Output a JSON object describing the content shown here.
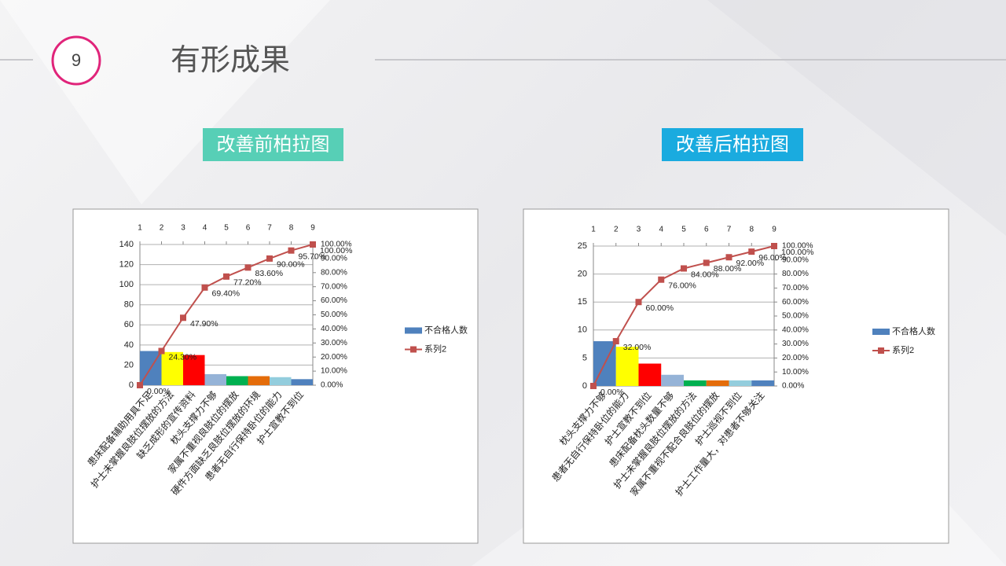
{
  "slide": {
    "number": "9",
    "title": "有形成果"
  },
  "chart_data": [
    {
      "type": "pareto",
      "title": "改善前柏拉图",
      "title_background": "#57cfb6",
      "categories": [
        "患床配备辅助用具不足",
        "护士未掌握良肢位摆放的方法",
        "缺乏成形的宣传资料",
        "枕头支撑力不够",
        "家属不重视良肢位的摆放",
        "硬件方面缺乏良肢位摆放的环境",
        "患者无自行保持卧位的能力",
        "护士宣教不到位"
      ],
      "series": [
        {
          "name": "不合格人数",
          "color": "#4f81bd",
          "colors": [
            "#4f81bd",
            "#ffff00",
            "#ff0000",
            "#95b3d7",
            "#00b050",
            "#e46c0a",
            "#93cddd",
            "#4f81bd"
          ],
          "values": [
            34,
            33,
            30,
            11,
            9,
            9,
            8,
            6
          ]
        },
        {
          "name": "系列2",
          "color": "#c0504d",
          "axis": "y2",
          "x": [
            1,
            2,
            3,
            4,
            5,
            6,
            7,
            8,
            9
          ],
          "values": [
            0,
            24.3,
            47.9,
            69.4,
            77.2,
            83.6,
            90,
            95.7,
            100
          ],
          "value_labels": [
            "0.00%",
            "24.30%",
            "47.90%",
            "69.40%",
            "77.20%",
            "83.60%",
            "90.00%",
            "95.70%",
            "100.00%"
          ]
        }
      ],
      "ylim": [
        0,
        140
      ],
      "yticks": [
        0,
        20,
        40,
        60,
        80,
        100,
        120,
        140
      ],
      "y2lim": [
        0,
        100
      ],
      "y2ticks": [
        {
          "value": 0,
          "label": "0.00%"
        },
        {
          "value": 10,
          "label": "10.00%"
        },
        {
          "value": 20,
          "label": "20.00%"
        },
        {
          "value": 30,
          "label": "30.00%"
        },
        {
          "value": 40,
          "label": "40.00%"
        },
        {
          "value": 50,
          "label": "50.00%"
        },
        {
          "value": 60,
          "label": "60.00%"
        },
        {
          "value": 70,
          "label": "70.00%"
        },
        {
          "value": 80,
          "label": "80.00%"
        },
        {
          "value": 90,
          "label": "90.00%"
        },
        {
          "value": 100,
          "label": "100.00%"
        }
      ],
      "xlim": [
        1,
        9
      ],
      "xticks": [
        1,
        2,
        3,
        4,
        5,
        6,
        7,
        8,
        9
      ],
      "grid": true,
      "legend": "right"
    },
    {
      "type": "pareto",
      "title": "改善后柏拉图",
      "title_background": "#1aabdf",
      "categories": [
        "枕头支撑力不够",
        "患者无自行保持卧位的能力",
        "护士宣教不到位",
        "患床配备枕头数量不够",
        "护士未掌握良肢位摆放的方法",
        "家属不重视不配合良肢位的摆放",
        "护士巡视不到位",
        "护士工作量大，对患者不够关注"
      ],
      "series": [
        {
          "name": "不合格人数",
          "color": "#4f81bd",
          "colors": [
            "#4f81bd",
            "#ffff00",
            "#ff0000",
            "#95b3d7",
            "#00b050",
            "#e46c0a",
            "#93cddd",
            "#4f81bd"
          ],
          "values": [
            8,
            7,
            4,
            2,
            1,
            1,
            1,
            1
          ]
        },
        {
          "name": "系列2",
          "color": "#c0504d",
          "axis": "y2",
          "x": [
            1,
            2,
            3,
            4,
            5,
            6,
            7,
            8,
            9
          ],
          "values": [
            0,
            32,
            60,
            76,
            84,
            88,
            92,
            96,
            100
          ],
          "value_labels": [
            "0.00%",
            "32.00%",
            "60.00%",
            "76.00%",
            "84.00%",
            "88.00%",
            "92.00%",
            "96.00%",
            "100.00%"
          ]
        }
      ],
      "ylim": [
        0,
        25
      ],
      "yticks": [
        0,
        5,
        10,
        15,
        20,
        25
      ],
      "y2lim": [
        0,
        100
      ],
      "y2ticks": [
        {
          "value": 0,
          "label": "0.00%"
        },
        {
          "value": 10,
          "label": "10.00%"
        },
        {
          "value": 20,
          "label": "20.00%"
        },
        {
          "value": 30,
          "label": "30.00%"
        },
        {
          "value": 40,
          "label": "40.00%"
        },
        {
          "value": 50,
          "label": "50.00%"
        },
        {
          "value": 60,
          "label": "60.00%"
        },
        {
          "value": 70,
          "label": "70.00%"
        },
        {
          "value": 80,
          "label": "80.00%"
        },
        {
          "value": 90,
          "label": "90.00%"
        },
        {
          "value": 100,
          "label": "100.00%"
        }
      ],
      "xlim": [
        1,
        9
      ],
      "xticks": [
        1,
        2,
        3,
        4,
        5,
        6,
        7,
        8,
        9
      ],
      "grid": true,
      "legend": "right"
    }
  ]
}
